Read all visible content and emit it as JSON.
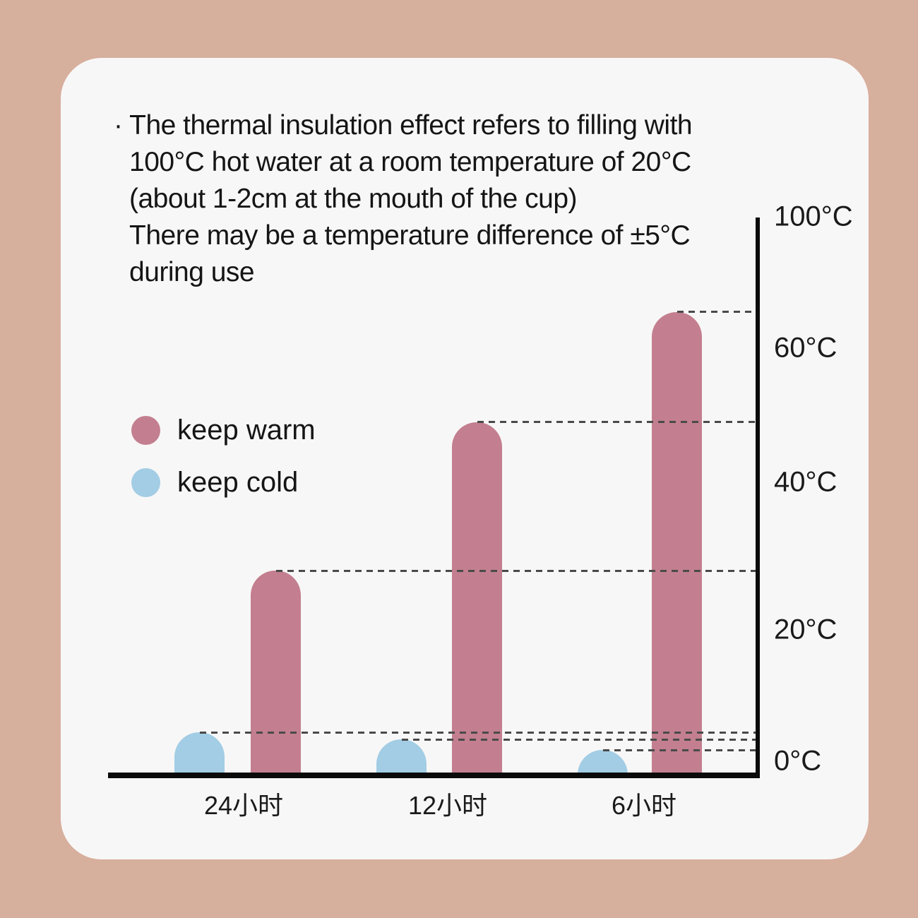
{
  "colors": {
    "page_bg": "#d7af9d",
    "card_bg": "#f8f7f7",
    "keep_warm": "#c37f8f",
    "keep_cold": "#a2cde5",
    "axis": "#0b0b0b",
    "dash": "#4a4a4a",
    "text": "#1a1a1a"
  },
  "description": {
    "lines": [
      "· The thermal insulation effect refers to filling with",
      "100°C hot water at a room temperature of 20°C",
      "(about 1-2cm at the mouth of the cup)",
      "There may be a temperature difference of ±5°C",
      "during use"
    ]
  },
  "legend": {
    "position": "middle-left",
    "items": [
      {
        "label": "keep warm",
        "color": "#c37f8f"
      },
      {
        "label": "keep cold",
        "color": "#a2cde5"
      }
    ]
  },
  "chart_data": {
    "type": "bar",
    "categories": [
      "24小时",
      "12小时",
      "6小时"
    ],
    "series": [
      {
        "name": "keep warm",
        "color": "#c37f8f",
        "values": [
          28,
          49,
          71
        ]
      },
      {
        "name": "keep cold",
        "color": "#a2cde5",
        "values": [
          4.4,
          3.3,
          1.7
        ]
      }
    ],
    "unit": "°C",
    "ylim": [
      0,
      100
    ],
    "y_ticks": [
      {
        "value": 0,
        "label": "0°C"
      },
      {
        "value": 20,
        "label": "20°C"
      },
      {
        "value": 40,
        "label": "40°C"
      },
      {
        "value": 60,
        "label": "60°C"
      },
      {
        "value": 100,
        "label": "100°C"
      }
    ],
    "y_axis_side": "right",
    "grid": "dashed leader line from each bar top to the y-axis",
    "layout_note": "y ticks 0/20/40/60/100 are evenly spaced (scale compressed above 60°C); rounded-top bars"
  }
}
